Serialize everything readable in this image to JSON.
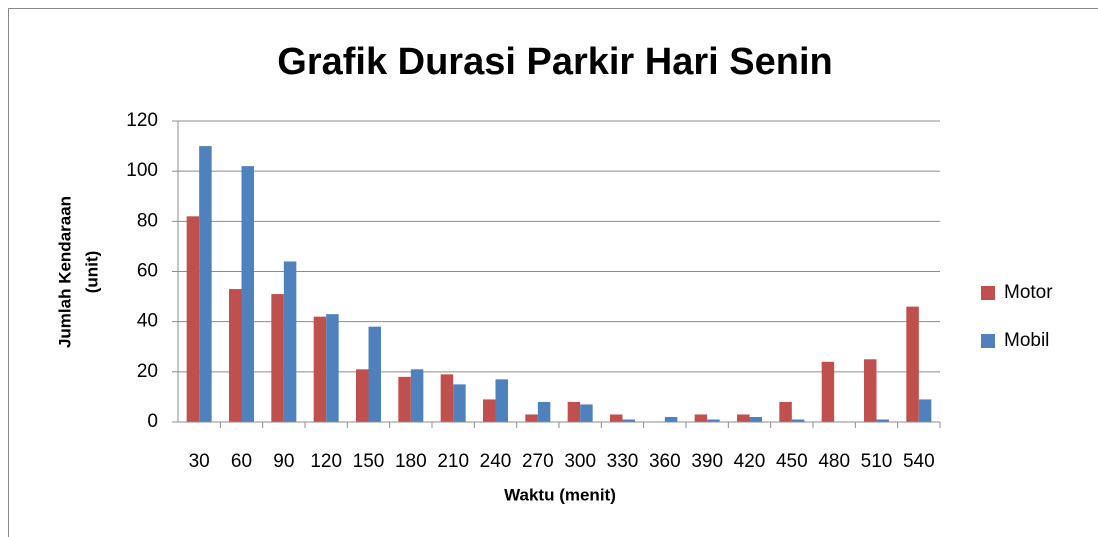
{
  "chart_data": {
    "type": "bar",
    "title": "Grafik Durasi Parkir Hari Senin",
    "x_label": "Waktu (menit)",
    "y_label": [
      "Jumlah Kendaraan",
      "(unit)"
    ],
    "categories": [
      "30",
      "60",
      "90",
      "120",
      "150",
      "180",
      "210",
      "240",
      "270",
      "300",
      "330",
      "360",
      "390",
      "420",
      "450",
      "480",
      "510",
      "540"
    ],
    "series": [
      {
        "name": "Motor",
        "color": "#c0504d",
        "values": [
          82,
          53,
          51,
          42,
          21,
          18,
          19,
          9,
          3,
          8,
          3,
          0,
          3,
          3,
          8,
          24,
          25,
          46
        ]
      },
      {
        "name": "Mobil",
        "color": "#4f81bd",
        "values": [
          110,
          102,
          64,
          43,
          38,
          21,
          15,
          17,
          8,
          7,
          1,
          2,
          1,
          2,
          1,
          0,
          1,
          9
        ]
      }
    ],
    "ylim": [
      0,
      120
    ],
    "yticks": [
      0,
      20,
      40,
      60,
      80,
      100,
      120
    ],
    "grid": true,
    "legend": "right"
  }
}
